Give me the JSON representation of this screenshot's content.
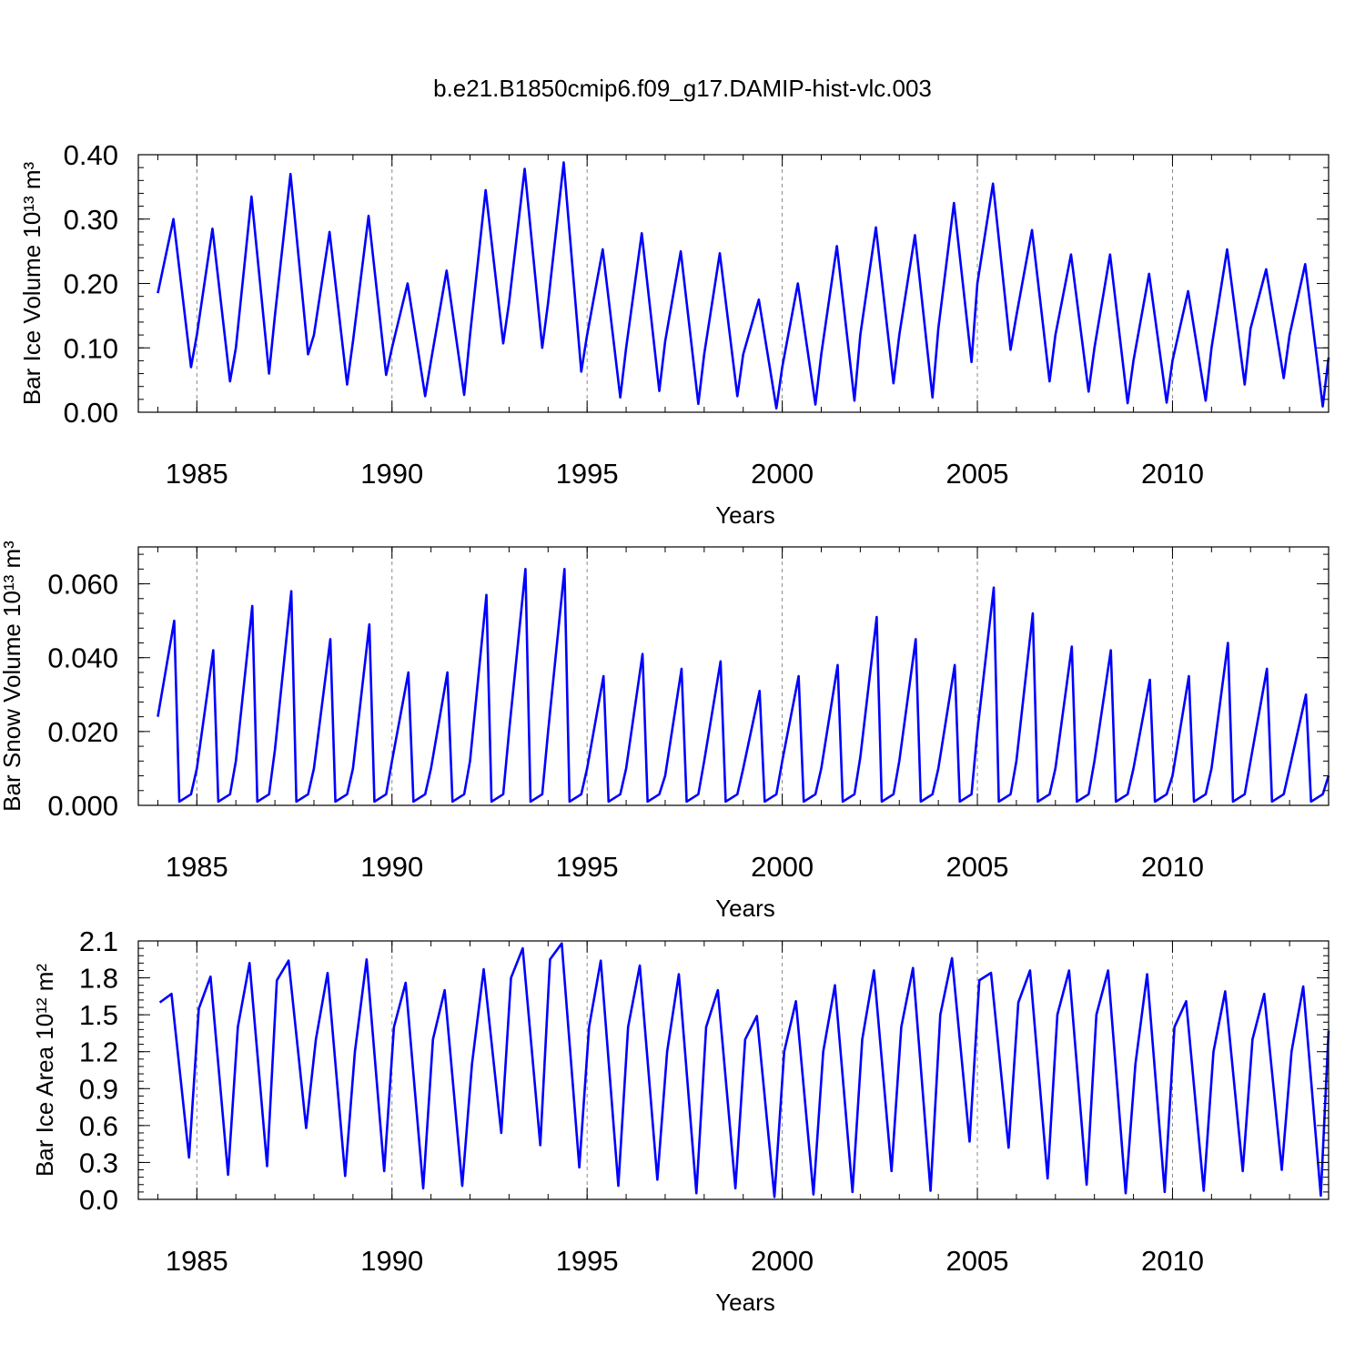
{
  "chart_data": [
    {
      "type": "line",
      "title": "b.e21.B1850cmip6.f09_g17.DAMIP-hist-vlc.003",
      "y_label": "Bar Ice Volume 10¹³ m³",
      "x_label": "Years",
      "color": "#0000ff",
      "grid": true,
      "xlim": [
        1983.5,
        2014
      ],
      "xticks": [
        1985,
        1990,
        1995,
        2000,
        2005,
        2010
      ],
      "ylim": [
        0,
        0.4
      ],
      "yticks": [
        {
          "value": 0,
          "label": "0.00"
        },
        {
          "value": 0.1,
          "label": "0.10"
        },
        {
          "value": 0.2,
          "label": "0.20"
        },
        {
          "value": 0.3,
          "label": "0.30"
        },
        {
          "value": 0.4,
          "label": "0.40"
        }
      ],
      "x": [
        1984,
        1984.4,
        1984.85,
        1985,
        1985.4,
        1985.85,
        1986,
        1986.4,
        1986.85,
        1987,
        1987.4,
        1987.85,
        1988,
        1988.4,
        1988.85,
        1989,
        1989.4,
        1989.85,
        1990,
        1990.4,
        1990.85,
        1991,
        1991.4,
        1991.85,
        1992,
        1992.4,
        1992.85,
        1993,
        1993.4,
        1993.85,
        1994,
        1994.4,
        1994.85,
        1995,
        1995.4,
        1995.85,
        1996,
        1996.4,
        1996.85,
        1997,
        1997.4,
        1997.85,
        1998,
        1998.4,
        1998.85,
        1999,
        1999.4,
        1999.85,
        2000,
        2000.4,
        2000.85,
        2001,
        2001.4,
        2001.85,
        2002,
        2002.4,
        2002.85,
        2003,
        2003.4,
        2003.85,
        2004,
        2004.4,
        2004.85,
        2005,
        2005.4,
        2005.85,
        2006,
        2006.4,
        2006.85,
        2007,
        2007.4,
        2007.85,
        2008,
        2008.4,
        2008.85,
        2009,
        2009.4,
        2009.85,
        2010,
        2010.4,
        2010.85,
        2011,
        2011.4,
        2011.85,
        2012,
        2012.4,
        2012.85,
        2013,
        2013.4,
        2013.85,
        2014
      ],
      "values": [
        0.185,
        0.3,
        0.07,
        0.12,
        0.285,
        0.048,
        0.1,
        0.335,
        0.06,
        0.15,
        0.37,
        0.09,
        0.12,
        0.28,
        0.043,
        0.11,
        0.305,
        0.058,
        0.1,
        0.2,
        0.025,
        0.08,
        0.22,
        0.027,
        0.12,
        0.345,
        0.107,
        0.17,
        0.378,
        0.1,
        0.17,
        0.388,
        0.063,
        0.12,
        0.253,
        0.023,
        0.1,
        0.278,
        0.033,
        0.11,
        0.25,
        0.013,
        0.09,
        0.247,
        0.025,
        0.09,
        0.175,
        0.006,
        0.07,
        0.2,
        0.012,
        0.09,
        0.258,
        0.018,
        0.12,
        0.287,
        0.045,
        0.12,
        0.275,
        0.023,
        0.13,
        0.325,
        0.078,
        0.2,
        0.355,
        0.097,
        0.15,
        0.283,
        0.048,
        0.12,
        0.245,
        0.032,
        0.1,
        0.245,
        0.014,
        0.08,
        0.215,
        0.015,
        0.08,
        0.188,
        0.018,
        0.1,
        0.253,
        0.043,
        0.13,
        0.222,
        0.053,
        0.12,
        0.23,
        0.009,
        0.085
      ]
    },
    {
      "type": "line",
      "y_label": "Bar Snow Volume 10¹³ m³",
      "x_label": "Years",
      "color": "#0000ff",
      "grid": true,
      "xlim": [
        1983.5,
        2014
      ],
      "xticks": [
        1985,
        1990,
        1995,
        2000,
        2005,
        2010
      ],
      "ylim": [
        0,
        0.07
      ],
      "yticks": [
        {
          "value": 0,
          "label": "0.000"
        },
        {
          "value": 0.02,
          "label": "0.020"
        },
        {
          "value": 0.04,
          "label": "0.040"
        },
        {
          "value": 0.06,
          "label": "0.060"
        }
      ],
      "x": [
        1984,
        1984.42,
        1984.55,
        1984.85,
        1985,
        1985.42,
        1985.55,
        1985.85,
        1986,
        1986.42,
        1986.55,
        1986.85,
        1987,
        1987.42,
        1987.55,
        1987.85,
        1988,
        1988.42,
        1988.55,
        1988.85,
        1989,
        1989.42,
        1989.55,
        1989.85,
        1990,
        1990.42,
        1990.55,
        1990.85,
        1991,
        1991.42,
        1991.55,
        1991.85,
        1992,
        1992.42,
        1992.55,
        1992.85,
        1993,
        1993.42,
        1993.55,
        1993.85,
        1994,
        1994.42,
        1994.55,
        1994.85,
        1995,
        1995.42,
        1995.55,
        1995.85,
        1996,
        1996.42,
        1996.55,
        1996.85,
        1997,
        1997.42,
        1997.55,
        1997.85,
        1998,
        1998.42,
        1998.55,
        1998.85,
        1999,
        1999.42,
        1999.55,
        1999.85,
        2000,
        2000.42,
        2000.55,
        2000.85,
        2001,
        2001.42,
        2001.55,
        2001.85,
        2002,
        2002.42,
        2002.55,
        2002.85,
        2003,
        2003.42,
        2003.55,
        2003.85,
        2004,
        2004.42,
        2004.55,
        2004.85,
        2005,
        2005.42,
        2005.55,
        2005.85,
        2006,
        2006.42,
        2006.55,
        2006.85,
        2007,
        2007.42,
        2007.55,
        2007.85,
        2008,
        2008.42,
        2008.55,
        2008.85,
        2009,
        2009.42,
        2009.55,
        2009.85,
        2010,
        2010.42,
        2010.55,
        2010.85,
        2011,
        2011.42,
        2011.55,
        2011.85,
        2012,
        2012.42,
        2012.55,
        2012.85,
        2013,
        2013.42,
        2013.55,
        2013.85,
        2014
      ],
      "values": [
        0.024,
        0.05,
        0.001,
        0.003,
        0.01,
        0.042,
        0.001,
        0.003,
        0.012,
        0.054,
        0.001,
        0.003,
        0.015,
        0.058,
        0.001,
        0.003,
        0.01,
        0.045,
        0.001,
        0.003,
        0.01,
        0.049,
        0.001,
        0.003,
        0.012,
        0.036,
        0.001,
        0.003,
        0.01,
        0.036,
        0.001,
        0.003,
        0.012,
        0.057,
        0.001,
        0.003,
        0.02,
        0.064,
        0.001,
        0.003,
        0.02,
        0.064,
        0.001,
        0.003,
        0.01,
        0.035,
        0.001,
        0.003,
        0.01,
        0.041,
        0.001,
        0.003,
        0.008,
        0.037,
        0.001,
        0.003,
        0.012,
        0.039,
        0.001,
        0.003,
        0.01,
        0.031,
        0.001,
        0.003,
        0.012,
        0.035,
        0.001,
        0.003,
        0.01,
        0.038,
        0.001,
        0.003,
        0.013,
        0.051,
        0.001,
        0.003,
        0.012,
        0.045,
        0.001,
        0.003,
        0.01,
        0.038,
        0.001,
        0.003,
        0.02,
        0.059,
        0.001,
        0.003,
        0.012,
        0.052,
        0.001,
        0.003,
        0.01,
        0.043,
        0.001,
        0.003,
        0.012,
        0.042,
        0.001,
        0.003,
        0.01,
        0.034,
        0.001,
        0.003,
        0.008,
        0.035,
        0.001,
        0.003,
        0.01,
        0.044,
        0.001,
        0.003,
        0.012,
        0.037,
        0.001,
        0.003,
        0.01,
        0.03,
        0.001,
        0.003,
        0.008
      ]
    },
    {
      "type": "line",
      "y_label": "Bar Ice Area 10¹² m²",
      "x_label": "Years",
      "color": "#0000ff",
      "grid": true,
      "xlim": [
        1983.5,
        2014
      ],
      "xticks": [
        1985,
        1990,
        1995,
        2000,
        2005,
        2010
      ],
      "ylim": [
        0,
        2.1
      ],
      "yticks": [
        {
          "value": 0,
          "label": "0.0"
        },
        0.3,
        0.6,
        0.9,
        1.2,
        1.5,
        1.8,
        2.1
      ],
      "x": [
        1984.05,
        1984.35,
        1984.8,
        1985.05,
        1985.35,
        1985.8,
        1986.05,
        1986.35,
        1986.8,
        1987.05,
        1987.35,
        1987.8,
        1988.05,
        1988.35,
        1988.8,
        1989.05,
        1989.35,
        1989.8,
        1990.05,
        1990.35,
        1990.8,
        1991.05,
        1991.35,
        1991.8,
        1992.05,
        1992.35,
        1992.8,
        1993.05,
        1993.35,
        1993.8,
        1994.05,
        1994.35,
        1994.8,
        1995.05,
        1995.35,
        1995.8,
        1996.05,
        1996.35,
        1996.8,
        1997.05,
        1997.35,
        1997.8,
        1998.05,
        1998.35,
        1998.8,
        1999.05,
        1999.35,
        1999.8,
        2000.05,
        2000.35,
        2000.8,
        2001.05,
        2001.35,
        2001.8,
        2002.05,
        2002.35,
        2002.8,
        2003.05,
        2003.35,
        2003.8,
        2004.05,
        2004.35,
        2004.8,
        2005.05,
        2005.35,
        2005.8,
        2006.05,
        2006.35,
        2006.8,
        2007.05,
        2007.35,
        2007.8,
        2008.05,
        2008.35,
        2008.8,
        2009.05,
        2009.35,
        2009.8,
        2010.05,
        2010.35,
        2010.8,
        2011.05,
        2011.35,
        2011.8,
        2012.05,
        2012.35,
        2012.8,
        2013.05,
        2013.35,
        2013.8,
        2014
      ],
      "values": [
        1.6,
        1.67,
        0.34,
        1.55,
        1.81,
        0.2,
        1.4,
        1.92,
        0.27,
        1.78,
        1.94,
        0.58,
        1.3,
        1.84,
        0.19,
        1.2,
        1.95,
        0.23,
        1.4,
        1.76,
        0.09,
        1.3,
        1.7,
        0.11,
        1.1,
        1.87,
        0.54,
        1.8,
        2.04,
        0.44,
        1.95,
        2.08,
        0.26,
        1.4,
        1.94,
        0.11,
        1.4,
        1.9,
        0.16,
        1.2,
        1.83,
        0.05,
        1.4,
        1.7,
        0.09,
        1.3,
        1.49,
        0.02,
        1.2,
        1.61,
        0.04,
        1.2,
        1.74,
        0.06,
        1.3,
        1.86,
        0.23,
        1.4,
        1.88,
        0.07,
        1.5,
        1.96,
        0.47,
        1.78,
        1.84,
        0.42,
        1.6,
        1.86,
        0.17,
        1.5,
        1.86,
        0.12,
        1.5,
        1.86,
        0.05,
        1.1,
        1.83,
        0.06,
        1.4,
        1.61,
        0.07,
        1.2,
        1.69,
        0.23,
        1.3,
        1.67,
        0.24,
        1.2,
        1.73,
        0.03,
        1.37
      ]
    }
  ]
}
